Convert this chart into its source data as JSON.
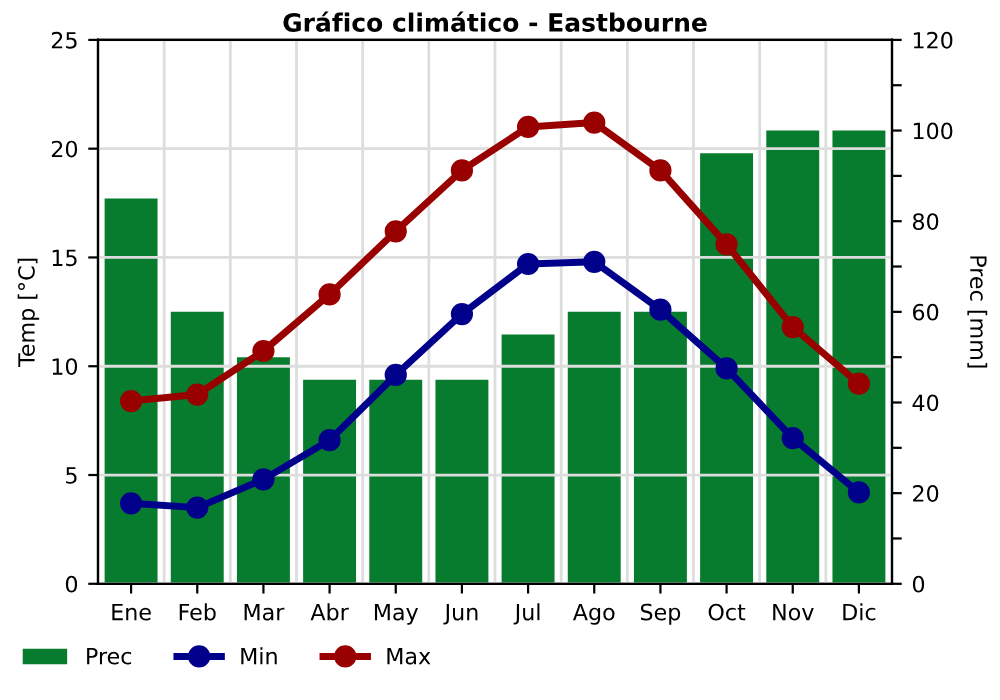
{
  "chart_data": {
    "type": "line",
    "title": "Gráfico climático - Eastbourne",
    "ylabel": "Temp [°C]",
    "y2label": "Prec [mm]",
    "categories": [
      "Ene",
      "Feb",
      "Mar",
      "Abr",
      "May",
      "Jun",
      "Jul",
      "Ago",
      "Sep",
      "Oct",
      "Nov",
      "Dic"
    ],
    "series": [
      {
        "name": "Prec",
        "type": "bar",
        "axis": "y2",
        "color": "#077c2f",
        "values": [
          85,
          60,
          50,
          45,
          45,
          45,
          55,
          60,
          60,
          95,
          100,
          100
        ]
      },
      {
        "name": "Min",
        "color": "#00008b",
        "marker": "circle",
        "values": [
          3.7,
          3.5,
          4.8,
          6.6,
          9.6,
          12.4,
          14.7,
          14.8,
          12.6,
          9.9,
          6.7,
          4.2
        ]
      },
      {
        "name": "Max",
        "color": "#990000",
        "marker": "circle",
        "values": [
          8.4,
          8.7,
          10.7,
          13.3,
          16.2,
          19.0,
          21.0,
          21.2,
          19.0,
          15.6,
          11.8,
          9.2
        ]
      }
    ],
    "ylim": [
      0,
      25
    ],
    "yticks": [
      0,
      5,
      10,
      15,
      20,
      25
    ],
    "y2lim": [
      0,
      120
    ],
    "y2ticks": [
      0,
      {
        "value": 10,
        "label": null
      },
      20,
      {
        "value": 30,
        "label": null
      },
      40,
      {
        "value": 50,
        "label": null
      },
      60,
      {
        "value": 70,
        "label": null
      },
      80,
      {
        "value": 90,
        "label": null
      },
      100,
      {
        "value": 110,
        "label": null
      },
      120
    ],
    "grid": true,
    "legend": "bottom",
    "line_style": "solid"
  }
}
